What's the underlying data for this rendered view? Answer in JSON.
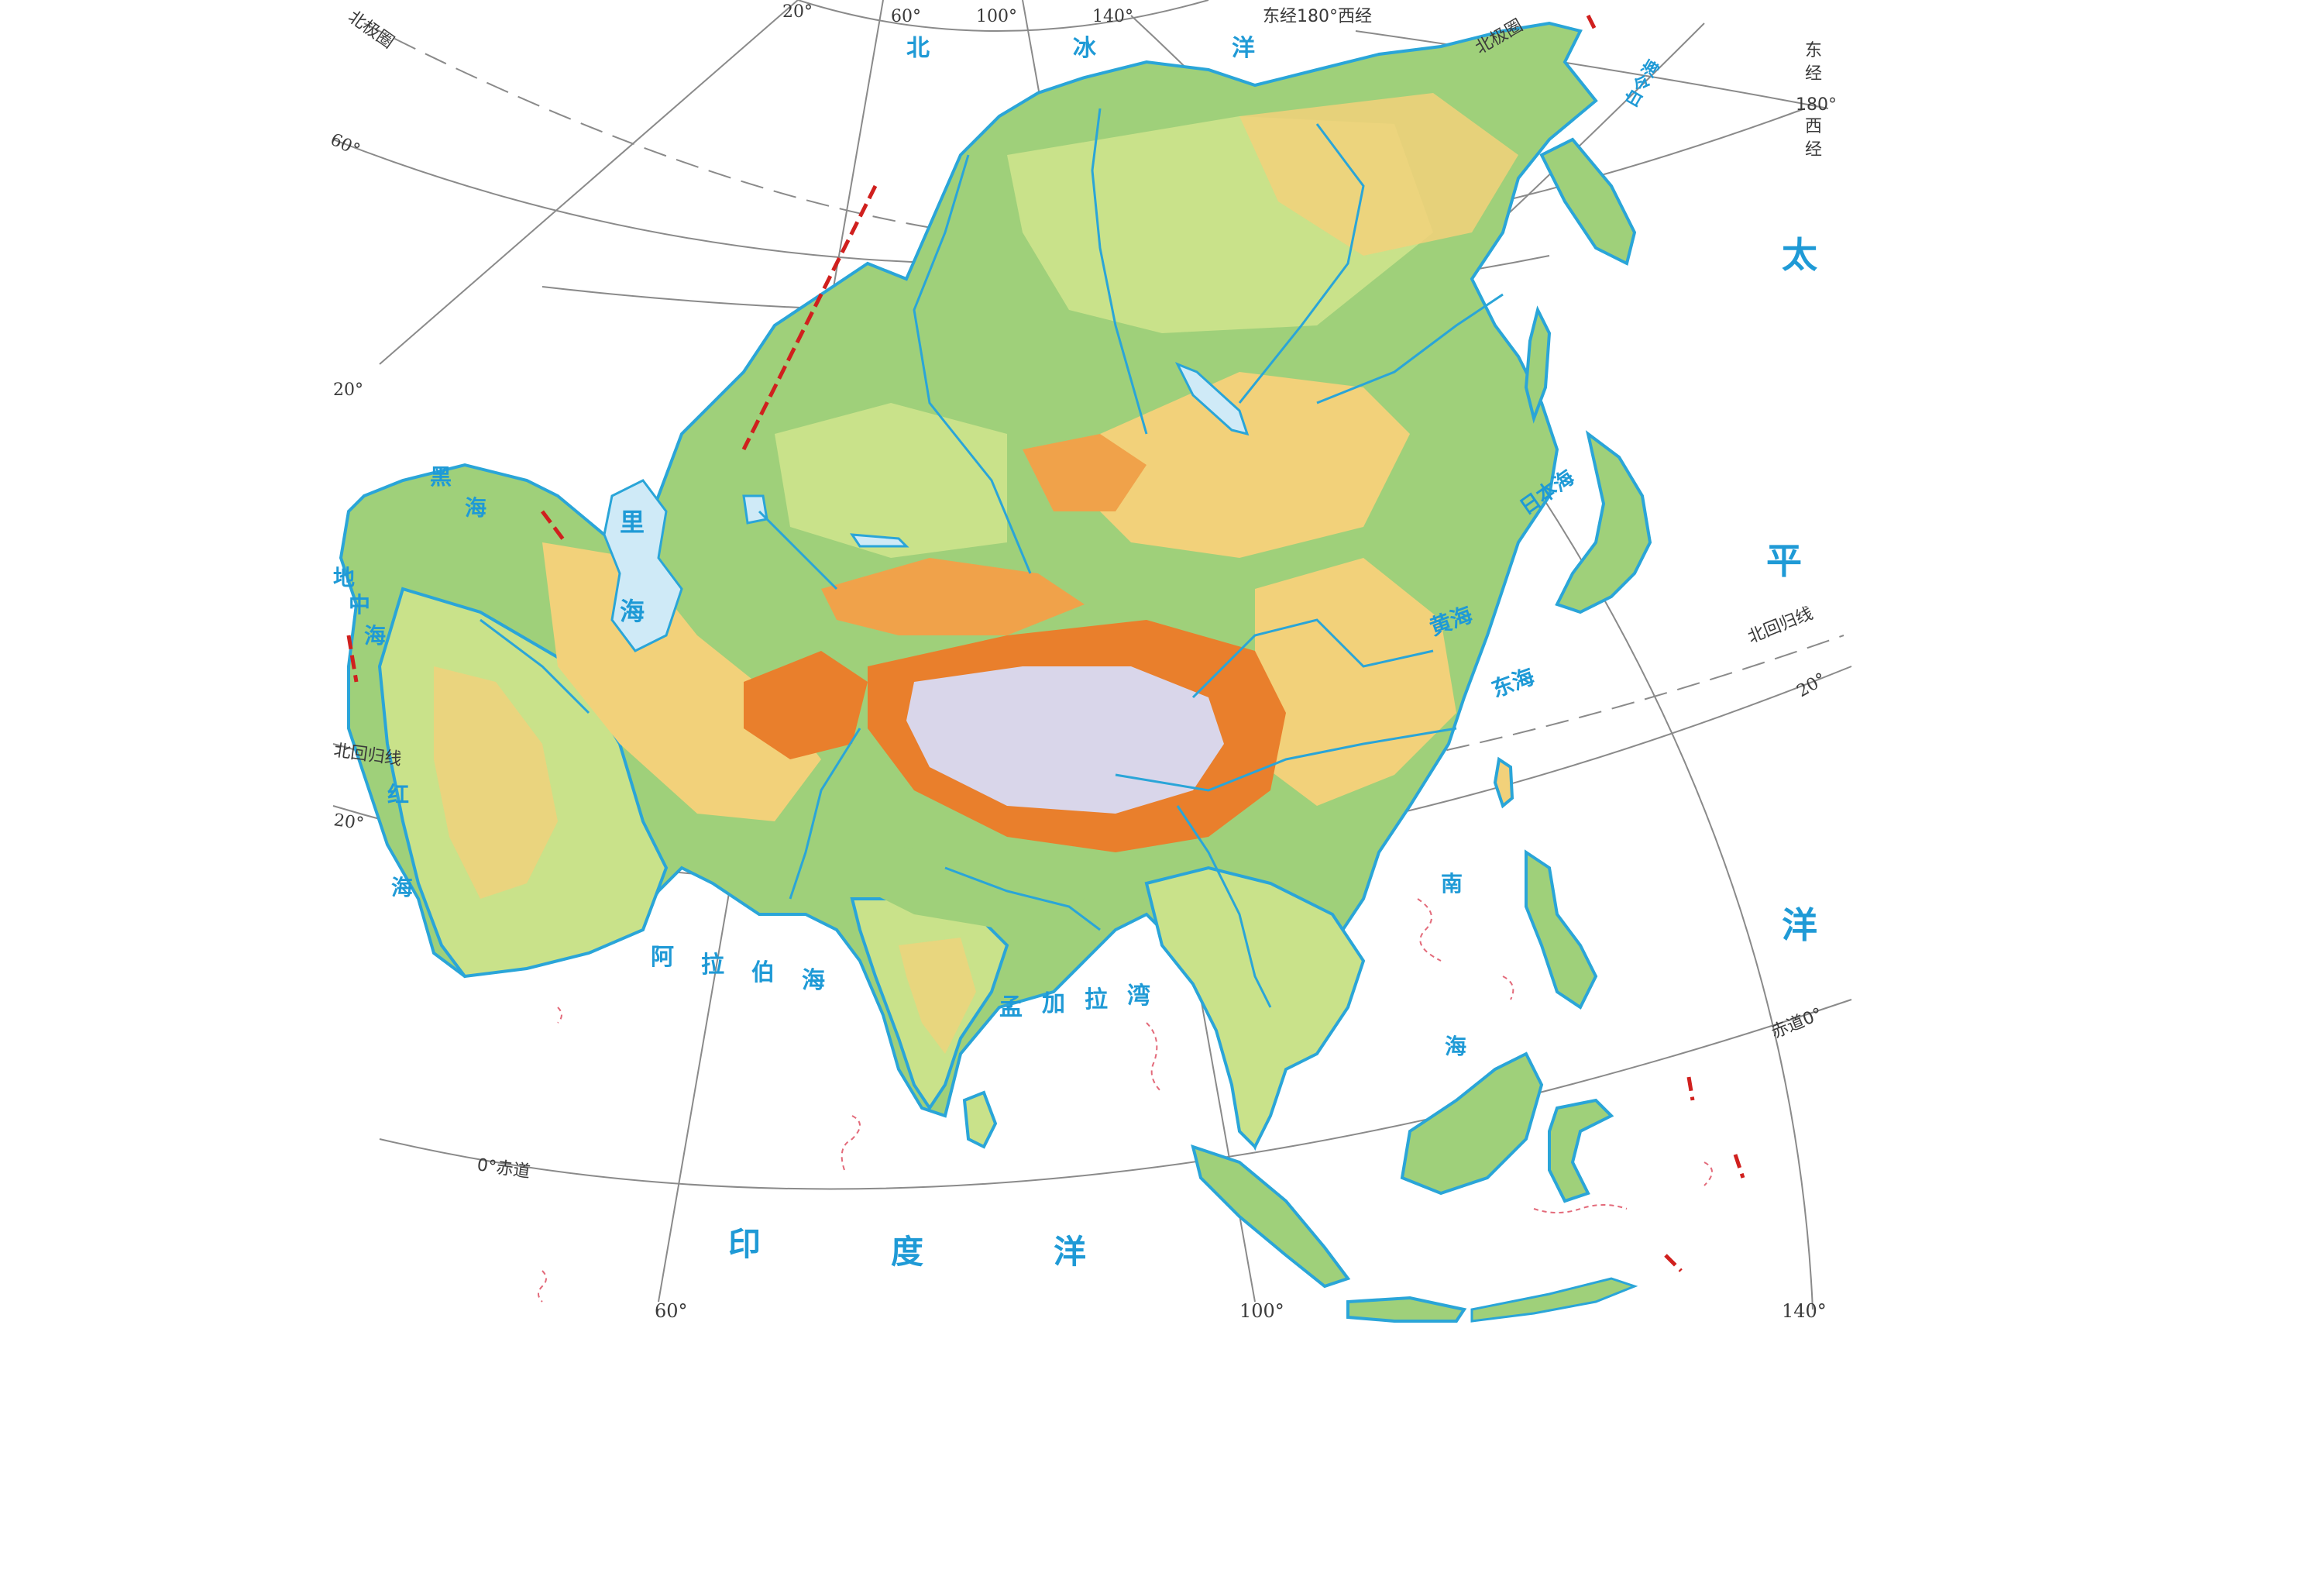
{
  "map": {
    "oceans": {
      "arctic": [
        "北",
        "冰",
        "洋"
      ],
      "pacific": [
        "太",
        "平",
        "洋"
      ],
      "indian": [
        "印",
        "度",
        "洋"
      ]
    },
    "seas": {
      "black": [
        "黑",
        "海"
      ],
      "caspian": [
        "里",
        "海"
      ],
      "mediterranean": [
        "地",
        "中",
        "海"
      ],
      "red": [
        "红",
        "海"
      ],
      "arabian": [
        "阿",
        "拉",
        "伯",
        "海"
      ],
      "bengal": [
        "孟",
        "加",
        "拉",
        "湾"
      ],
      "japan": "日本海",
      "yellow": "黄海",
      "east_china": "东海",
      "south_china": [
        "南",
        "海"
      ],
      "bering": "白令海"
    },
    "lines": {
      "arctic_circle_left": "北极圈",
      "arctic_circle_right": "北极圈",
      "tropic_cancer_left": "北回归线",
      "tropic_cancer_right": "北回归线",
      "equator_left": "0°赤道",
      "equator_right": "赤道0°",
      "dateline_top": "东经180°西经",
      "dateline_right": [
        "东",
        "经",
        "180°",
        "西",
        "经"
      ]
    },
    "longitudes_bottom": [
      "60°",
      "100°",
      "140°"
    ],
    "longitudes_top": [
      "20°",
      "60°",
      "100°",
      "140°"
    ],
    "latitudes_left": [
      "60°",
      "20°",
      "20°"
    ],
    "latitudes_right": [
      "20°"
    ],
    "colors": {
      "ocean_label": "#1f9ad6",
      "coastline": "#2aa5d8",
      "lowland": "#9fd07a",
      "plain": "#c9e28a",
      "upland": "#f2d17a",
      "highland": "#f0a24a",
      "mountain": "#e97f2c",
      "plateau_high": "#d9d6ea",
      "grid": "#8a8a8a",
      "boundary": "#d0201e"
    },
    "icons": [
      "relief-shading",
      "river-network",
      "dashed-reef-outline"
    ]
  }
}
